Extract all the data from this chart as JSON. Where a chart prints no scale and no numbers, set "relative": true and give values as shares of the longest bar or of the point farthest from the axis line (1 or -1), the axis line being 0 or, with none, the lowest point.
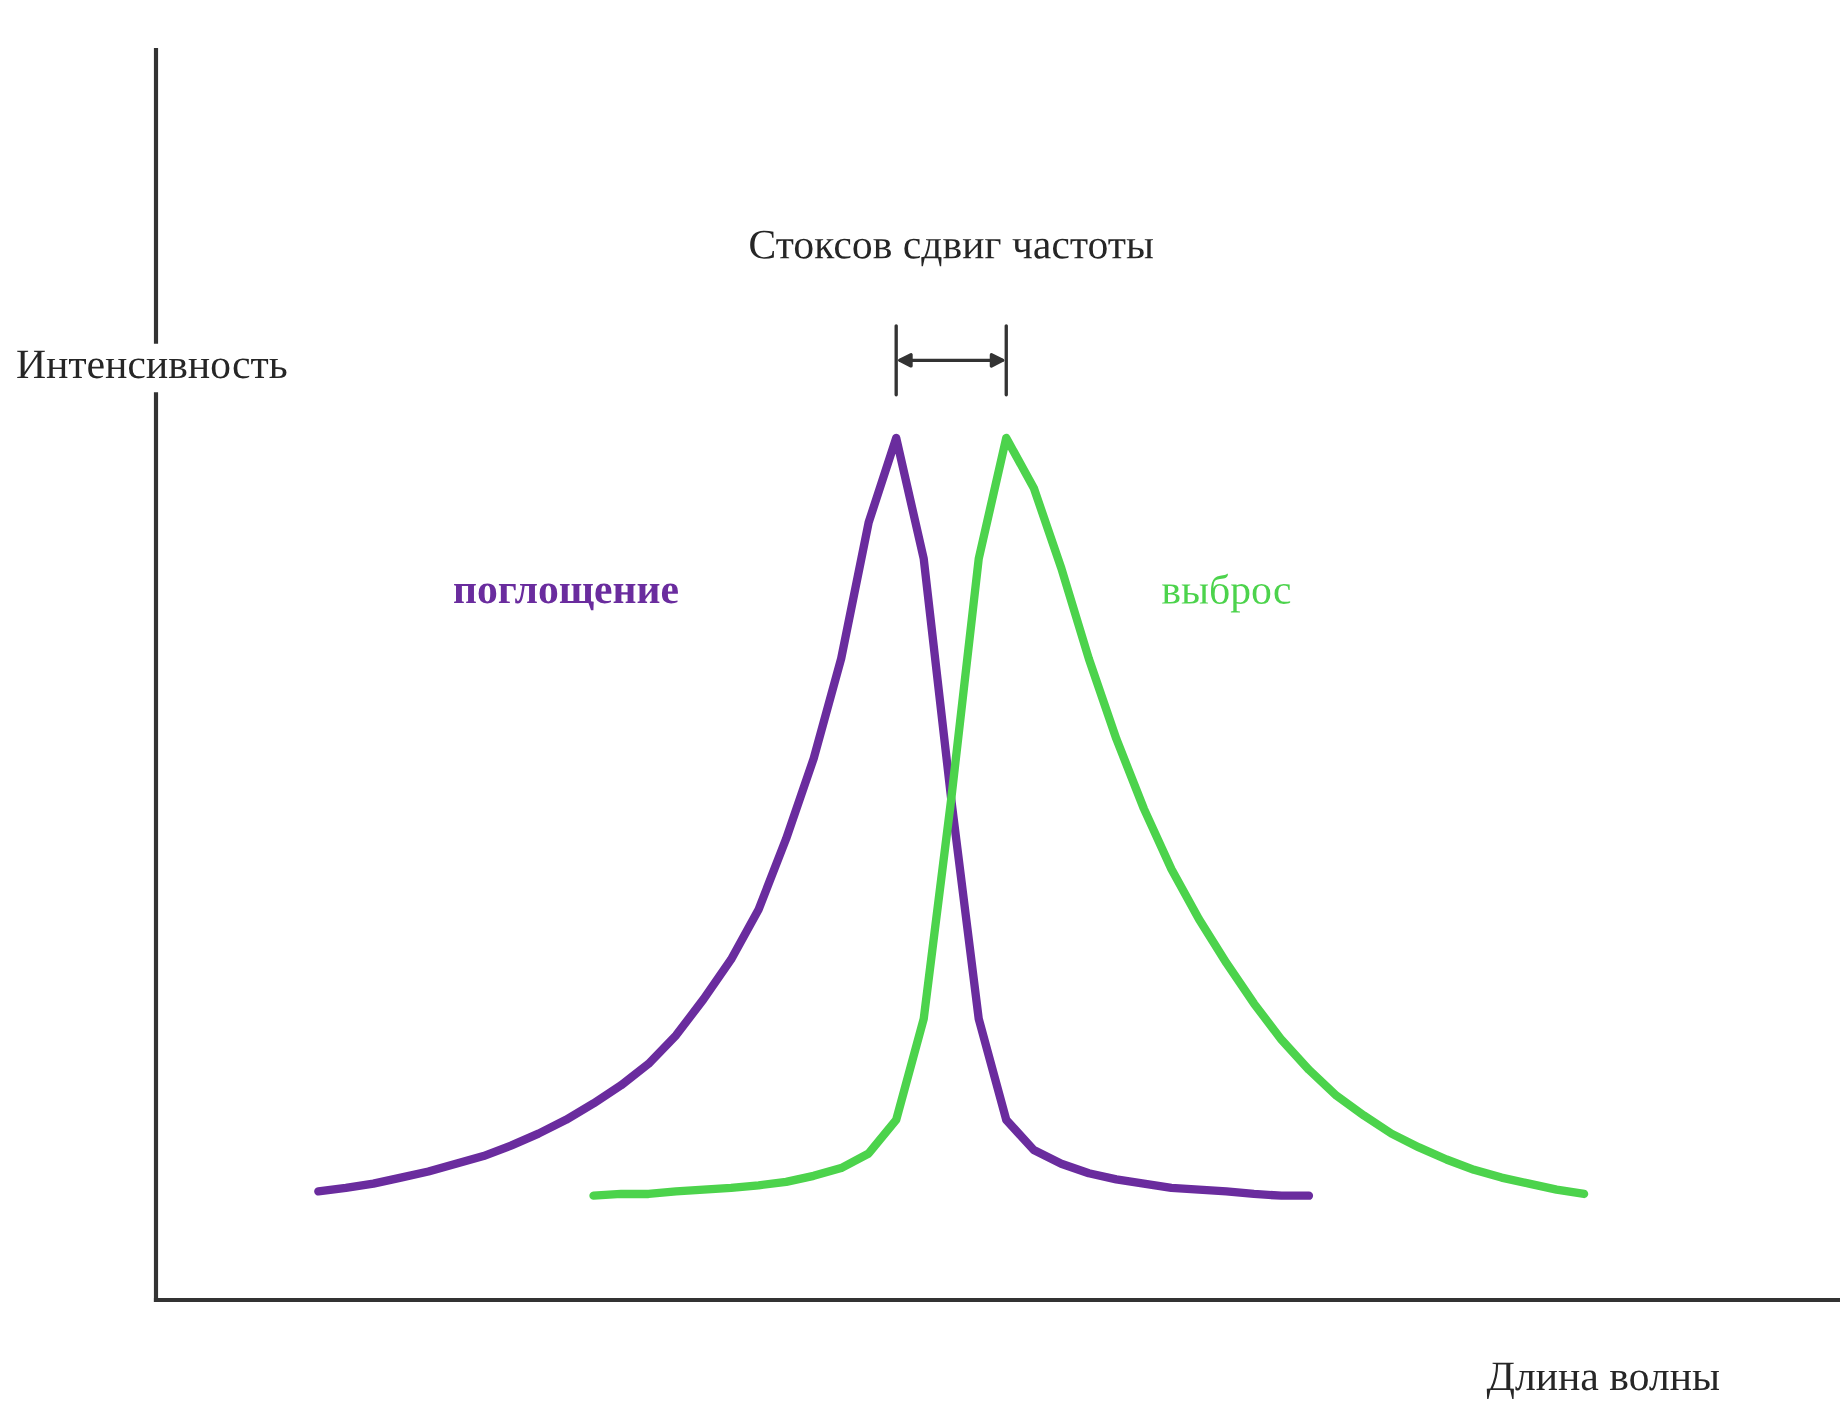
{
  "chart_data": {
    "type": "line",
    "relative": true,
    "xlabel": "Длина волны",
    "ylabel": "Интенсивность",
    "annotations": [
      "Стоксов сдвиг частоты"
    ],
    "categories": [
      null,
      null,
      null,
      null,
      null,
      null,
      null,
      null,
      null,
      null,
      null,
      null,
      null,
      null,
      null,
      null,
      null,
      null,
      null,
      null,
      null,
      null,
      null,
      null,
      null,
      null,
      null,
      null,
      null,
      null,
      null,
      null,
      null,
      null,
      null,
      null,
      null,
      null,
      null,
      null,
      null,
      null,
      null,
      null,
      null,
      null,
      null
    ],
    "series": [
      {
        "name": "поглощение",
        "color": "#6a2c9e",
        "values": [
          0.126,
          0.13,
          0.135,
          0.142,
          0.149,
          0.158,
          0.167,
          0.179,
          0.193,
          0.209,
          0.228,
          0.249,
          0.274,
          0.307,
          0.349,
          0.395,
          0.453,
          0.535,
          0.628,
          0.744,
          0.902,
          1.0,
          0.86,
          0.581,
          0.326,
          0.209,
          0.174,
          0.158,
          0.147,
          0.14,
          0.135,
          0.13,
          0.128,
          0.126,
          0.123,
          0.121,
          0.121,
          null,
          null,
          null,
          null,
          null,
          null,
          null,
          null,
          null,
          null
        ]
      },
      {
        "name": "выброс",
        "color": "#4cd34c",
        "values": [
          null,
          null,
          null,
          null,
          null,
          null,
          null,
          null,
          null,
          null,
          0.121,
          0.123,
          0.123,
          0.126,
          0.128,
          0.13,
          0.133,
          0.137,
          0.144,
          0.153,
          0.17,
          0.209,
          0.326,
          0.581,
          0.86,
          1.0,
          0.942,
          0.849,
          0.744,
          0.651,
          0.57,
          0.5,
          0.442,
          0.391,
          0.344,
          0.302,
          0.267,
          0.237,
          0.214,
          0.193,
          0.177,
          0.163,
          0.151,
          0.142,
          0.135,
          0.128,
          0.123
        ]
      }
    ],
    "legend": false,
    "marker": "none",
    "line_style": "solid"
  }
}
